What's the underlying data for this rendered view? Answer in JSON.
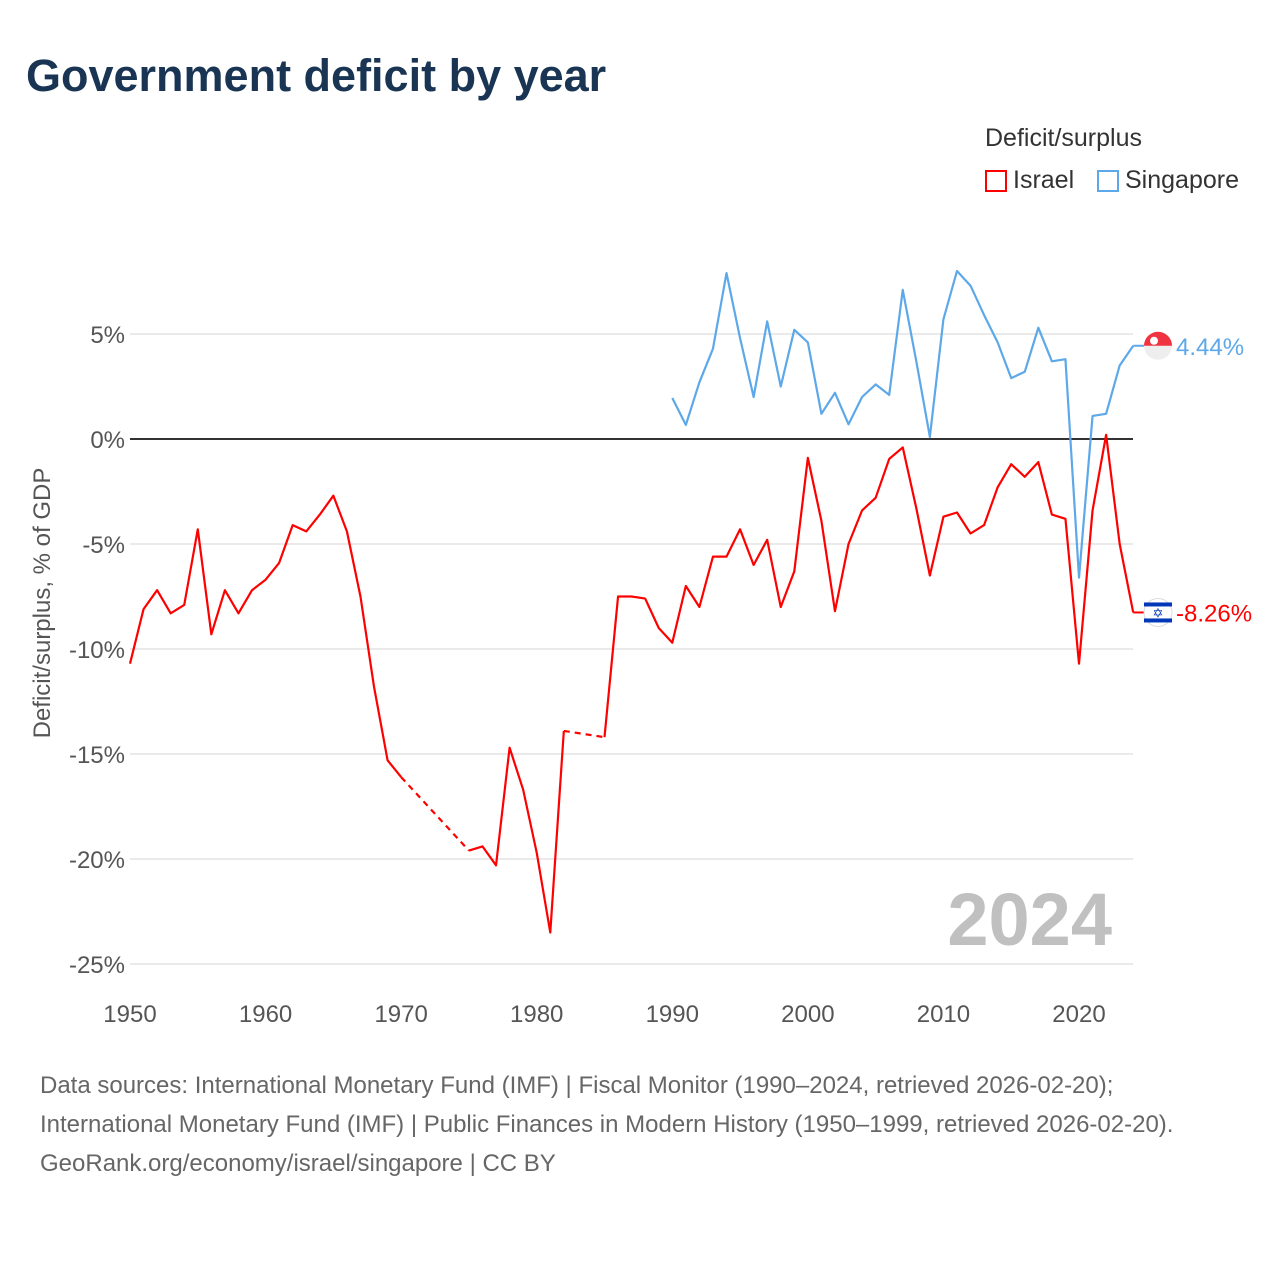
{
  "chart_data": {
    "type": "line",
    "title": "Government deficit by year",
    "ylabel": "Deficit/surplus, % of GDP",
    "xlabel": "",
    "xlim": [
      1950,
      2024
    ],
    "ylim": [
      -25,
      8
    ],
    "x_ticks": [
      1950,
      1960,
      1970,
      1980,
      1990,
      2000,
      2010,
      2020
    ],
    "x_tick_labels": [
      "1950",
      "1960",
      "1970",
      "1980",
      "1990",
      "2000",
      "2010",
      "2020"
    ],
    "y_ticks": [
      5,
      0,
      -5,
      -10,
      -15,
      -20,
      -25
    ],
    "y_tick_labels": [
      "5%",
      "0%",
      "-5%",
      "-10%",
      "-15%",
      "-20%",
      "-25%"
    ],
    "legend_title": "Deficit/surplus",
    "legend_position": "top-right",
    "year_watermark": "2024",
    "series": [
      {
        "name": "Israel",
        "color": "#ff0000",
        "end_label": "-8.26%",
        "flag": "israel-flag",
        "start_year": 1950,
        "values": [
          -10.7,
          -8.1,
          -7.2,
          -8.3,
          -7.9,
          -4.3,
          -9.3,
          -7.2,
          -8.3,
          -7.2,
          -6.7,
          -5.9,
          -4.1,
          -4.4,
          -3.6,
          -2.7,
          -4.4,
          -7.5,
          -11.8,
          -15.3,
          -16.1,
          null,
          null,
          null,
          null,
          -19.6,
          -19.4,
          -20.3,
          -14.7,
          -16.7,
          -19.7,
          -23.5,
          -13.9,
          null,
          null,
          -14.2,
          -7.5,
          -7.5,
          -7.6,
          -9.0,
          -9.7,
          -7.0,
          -8.0,
          -5.6,
          -5.6,
          -4.3,
          -6.0,
          -4.8,
          -8.0,
          -6.3,
          -0.9,
          -3.9,
          -8.2,
          -5.0,
          -3.4,
          -2.8,
          -0.95,
          -0.4,
          -3.3,
          -6.5,
          -3.7,
          -3.5,
          -4.5,
          -4.1,
          -2.3,
          -1.2,
          -1.8,
          -1.1,
          -3.6,
          -3.8,
          -10.7,
          -3.4,
          0.2,
          -5.0,
          -8.26
        ]
      },
      {
        "name": "Singapore",
        "color": "#5da8e8",
        "end_label": "4.44%",
        "flag": "singapore-flag",
        "start_year": 1990,
        "values": [
          1.95,
          0.67,
          2.7,
          4.3,
          7.9,
          4.8,
          2.0,
          5.6,
          2.5,
          5.2,
          4.6,
          1.2,
          2.2,
          0.7,
          2.0,
          2.6,
          2.1,
          7.1,
          3.7,
          0.1,
          5.7,
          8.0,
          7.3,
          5.9,
          4.6,
          2.9,
          3.2,
          5.3,
          3.7,
          3.8,
          -6.6,
          1.1,
          1.2,
          3.5,
          4.44
        ]
      }
    ]
  },
  "footer": {
    "sources": "Data sources: International Monetary Fund (IMF) | Fiscal Monitor (1990–2024, retrieved 2026-02-20); International Monetary Fund (IMF) | Public Finances in Modern History (1950–1999, retrieved 2026-02-20).",
    "credit": "GeoRank.org/economy/israel/singapore | CC BY"
  }
}
